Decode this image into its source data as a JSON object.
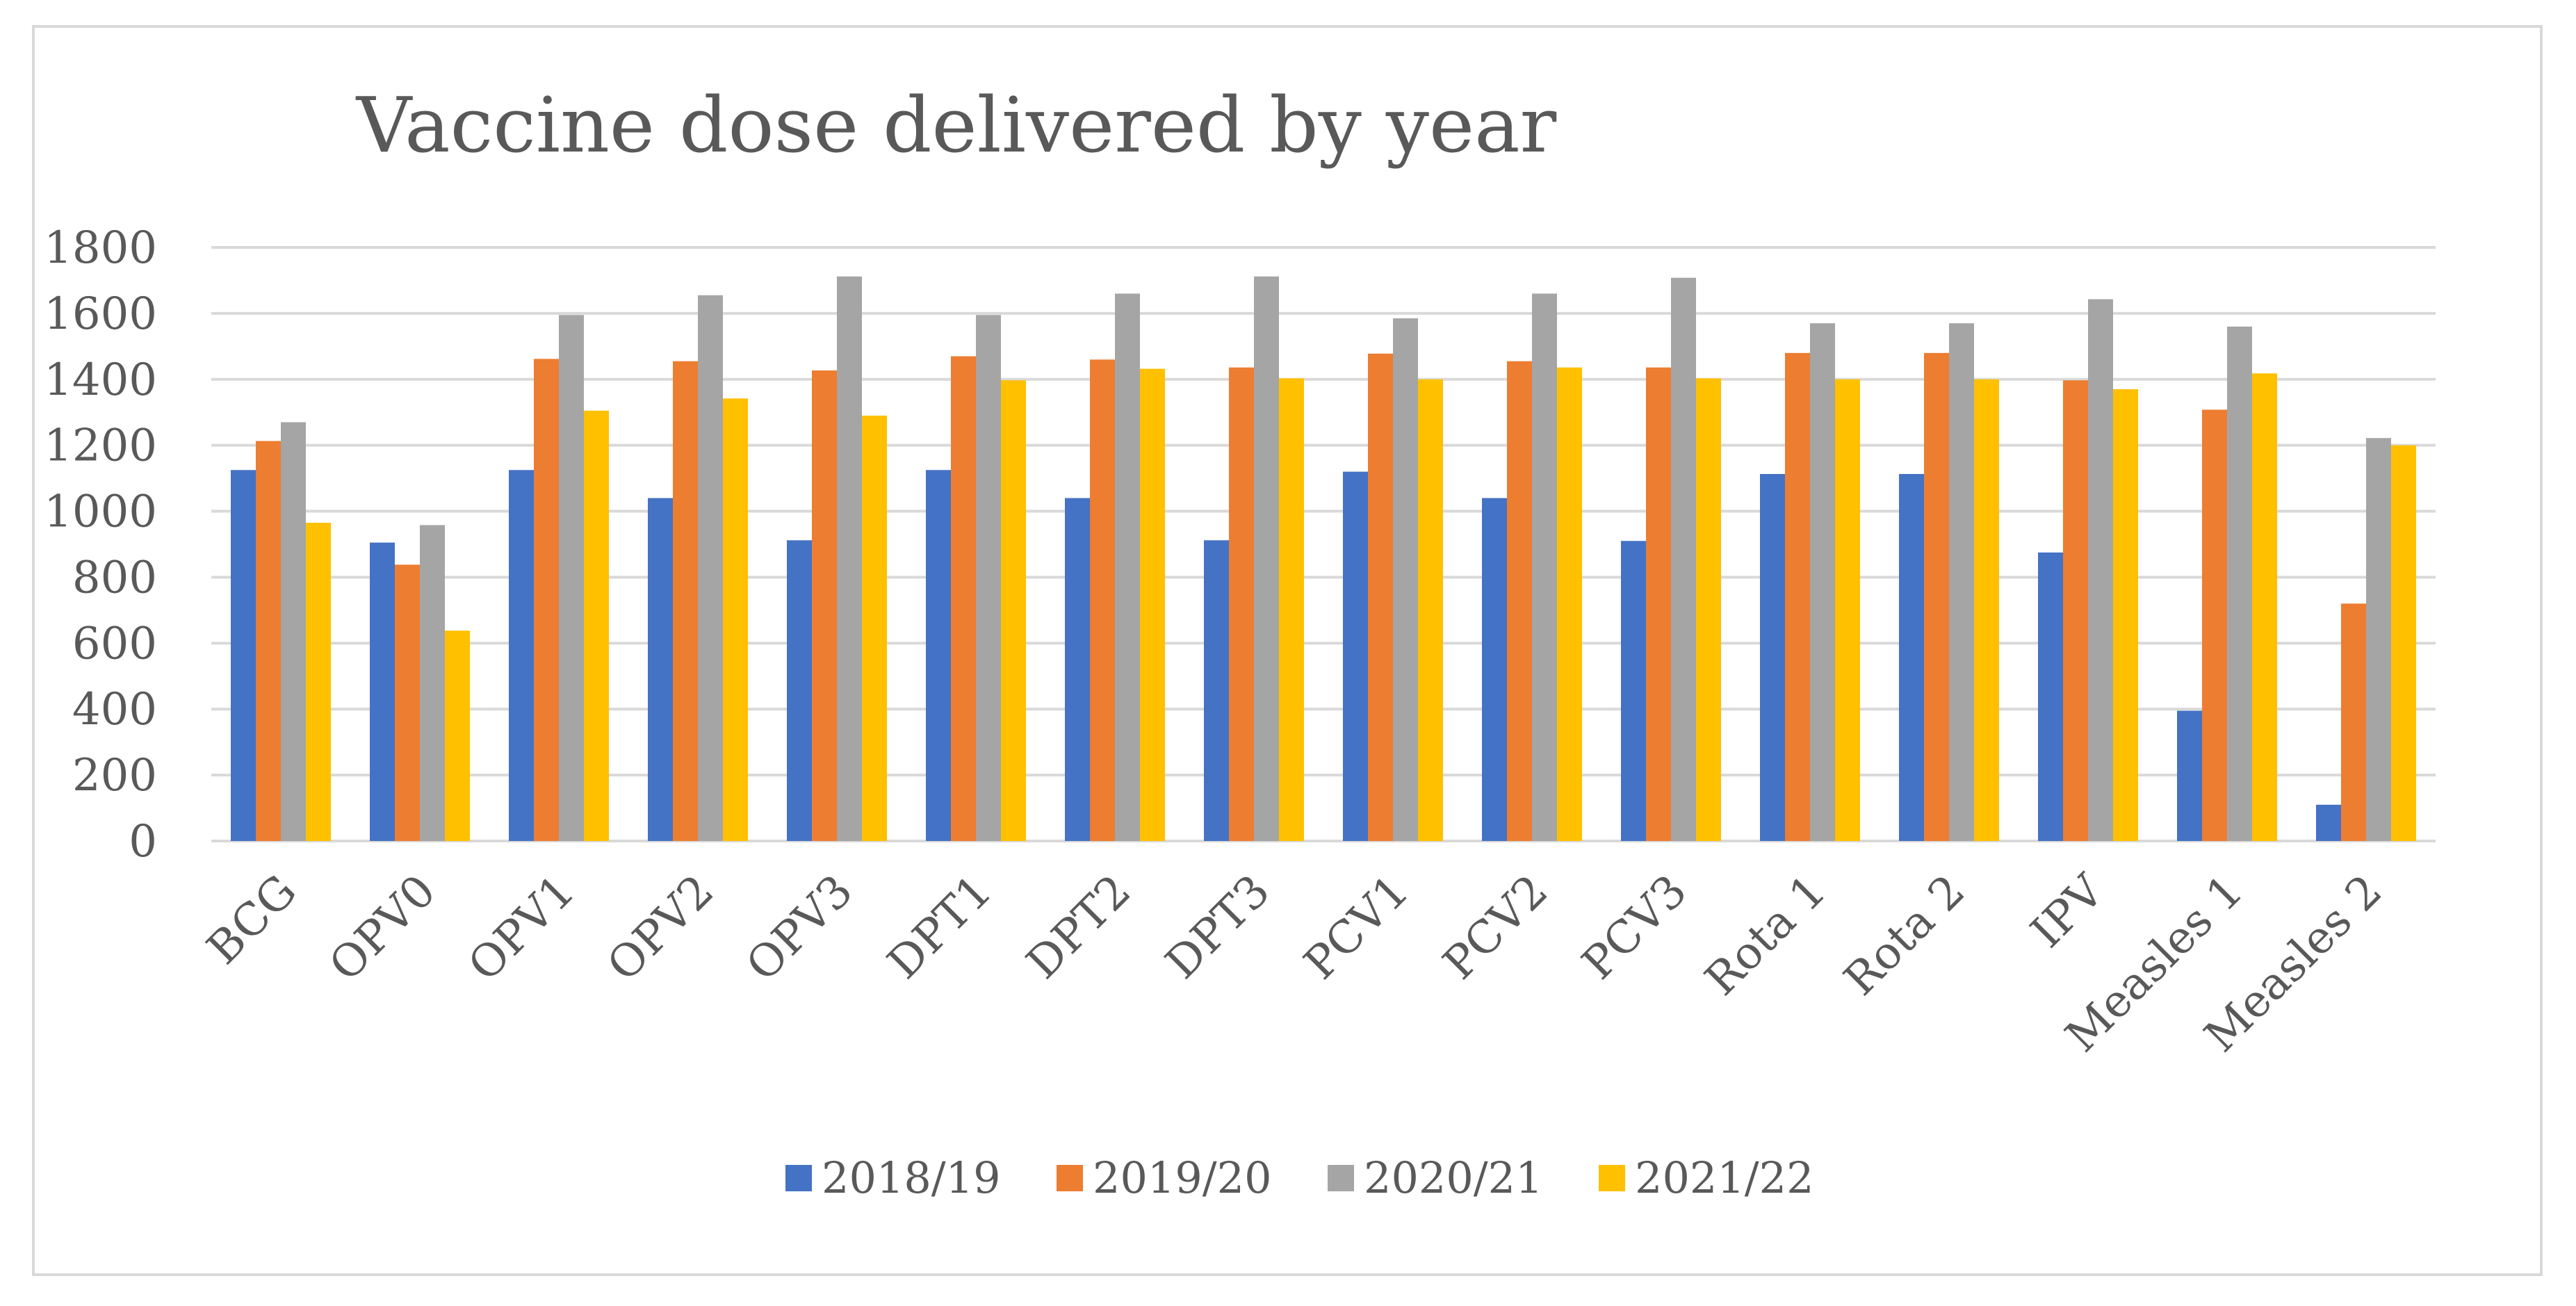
{
  "chart_data": {
    "type": "bar",
    "title": "Vaccine dose delivered by year",
    "xlabel": "",
    "ylabel": "",
    "ylim": [
      0,
      1800
    ],
    "yticks": [
      0,
      200,
      400,
      600,
      800,
      1000,
      1200,
      1400,
      1600,
      1800
    ],
    "grid": true,
    "legend_position": "bottom",
    "categories": [
      "BCG",
      "OPV0",
      "OPV1",
      "OPV2",
      "OPV3",
      "DPT1",
      "DPT2",
      "DPT3",
      "PCV1",
      "PCV2",
      "PCV3",
      "Rota 1",
      "Rota 2",
      "IPV",
      "Measles 1",
      "Measles 2"
    ],
    "series": [
      {
        "name": "2018/19",
        "color": "#4472c4",
        "values": [
          1125,
          905,
          1125,
          1040,
          912,
          1125,
          1040,
          912,
          1120,
          1040,
          910,
          1113,
          1113,
          875,
          395,
          110
        ]
      },
      {
        "name": "2019/20",
        "color": "#ed7d31",
        "values": [
          1213,
          838,
          1462,
          1455,
          1427,
          1470,
          1460,
          1436,
          1478,
          1455,
          1436,
          1480,
          1480,
          1397,
          1308,
          720
        ]
      },
      {
        "name": "2020/21",
        "color": "#a5a5a5",
        "values": [
          1270,
          958,
          1595,
          1655,
          1712,
          1595,
          1660,
          1712,
          1585,
          1660,
          1708,
          1570,
          1570,
          1643,
          1560,
          1222
        ]
      },
      {
        "name": "2021/22",
        "color": "#ffc000",
        "values": [
          965,
          638,
          1305,
          1342,
          1290,
          1397,
          1432,
          1403,
          1400,
          1436,
          1403,
          1400,
          1400,
          1370,
          1418,
          1200
        ]
      }
    ]
  }
}
